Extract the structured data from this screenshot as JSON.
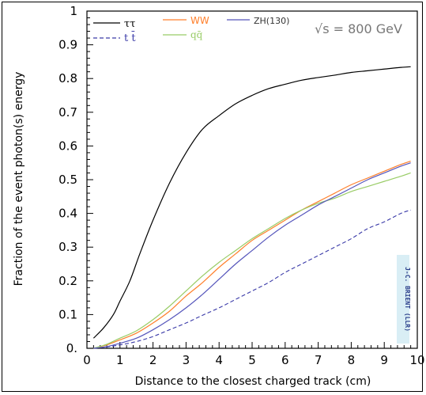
{
  "chart_data": {
    "type": "line",
    "title": "",
    "xlabel": "Distance to the closest charged track (cm)",
    "ylabel": "Fraction of the event photon(s) energy",
    "xlim": [
      0,
      10
    ],
    "ylim": [
      0,
      1
    ],
    "xticks": [
      "0",
      "1",
      "2",
      "3",
      "4",
      "5",
      "6",
      "7",
      "8",
      "9",
      "10"
    ],
    "yticks": [
      "0.",
      "0.1",
      "0.2",
      "0.3",
      "0.4",
      "0.5",
      "0.6",
      "0.7",
      "0.8",
      "0.9",
      "1"
    ],
    "annotation": "√s = 800 GeV",
    "author_stamp": "J-C. BRIENT (LLR)",
    "legend_position": "top",
    "series": [
      {
        "name": "ττ",
        "color": "#000000",
        "dash": "solid",
        "points": [
          [
            0.2,
            0.03
          ],
          [
            0.5,
            0.06
          ],
          [
            0.8,
            0.1
          ],
          [
            1.0,
            0.14
          ],
          [
            1.3,
            0.2
          ],
          [
            1.6,
            0.28
          ],
          [
            2.0,
            0.38
          ],
          [
            2.5,
            0.49
          ],
          [
            3.0,
            0.58
          ],
          [
            3.5,
            0.65
          ],
          [
            4.0,
            0.69
          ],
          [
            4.5,
            0.725
          ],
          [
            5.0,
            0.75
          ],
          [
            5.5,
            0.77
          ],
          [
            6.0,
            0.783
          ],
          [
            6.5,
            0.795
          ],
          [
            7.0,
            0.803
          ],
          [
            7.5,
            0.81
          ],
          [
            8.0,
            0.818
          ],
          [
            8.5,
            0.823
          ],
          [
            9.0,
            0.828
          ],
          [
            9.5,
            0.833
          ],
          [
            9.8,
            0.835
          ]
        ]
      },
      {
        "name": "t t̄",
        "color": "#3a3aa8",
        "dash": "dashed",
        "points": [
          [
            0.2,
            0.0
          ],
          [
            0.6,
            0.004
          ],
          [
            1.0,
            0.01
          ],
          [
            1.5,
            0.02
          ],
          [
            2.0,
            0.035
          ],
          [
            2.5,
            0.055
          ],
          [
            3.0,
            0.075
          ],
          [
            3.5,
            0.098
          ],
          [
            4.0,
            0.12
          ],
          [
            4.5,
            0.145
          ],
          [
            5.0,
            0.17
          ],
          [
            5.5,
            0.195
          ],
          [
            6.0,
            0.225
          ],
          [
            6.5,
            0.25
          ],
          [
            7.0,
            0.275
          ],
          [
            7.5,
            0.3
          ],
          [
            8.0,
            0.325
          ],
          [
            8.5,
            0.355
          ],
          [
            9.0,
            0.375
          ],
          [
            9.5,
            0.4
          ],
          [
            9.8,
            0.41
          ]
        ]
      },
      {
        "name": "WW",
        "color": "#ff7f2a",
        "dash": "solid",
        "points": [
          [
            0.2,
            0.0
          ],
          [
            0.6,
            0.01
          ],
          [
            1.0,
            0.025
          ],
          [
            1.5,
            0.045
          ],
          [
            2.0,
            0.075
          ],
          [
            2.5,
            0.11
          ],
          [
            3.0,
            0.155
          ],
          [
            3.5,
            0.195
          ],
          [
            4.0,
            0.24
          ],
          [
            4.5,
            0.28
          ],
          [
            5.0,
            0.32
          ],
          [
            5.5,
            0.35
          ],
          [
            6.0,
            0.38
          ],
          [
            6.5,
            0.41
          ],
          [
            7.0,
            0.435
          ],
          [
            7.5,
            0.46
          ],
          [
            8.0,
            0.485
          ],
          [
            8.5,
            0.505
          ],
          [
            9.0,
            0.525
          ],
          [
            9.5,
            0.545
          ],
          [
            9.8,
            0.555
          ]
        ]
      },
      {
        "name": "qq̄",
        "color": "#99cc66",
        "dash": "solid",
        "points": [
          [
            0.2,
            0.0
          ],
          [
            0.6,
            0.012
          ],
          [
            1.0,
            0.03
          ],
          [
            1.5,
            0.052
          ],
          [
            2.0,
            0.085
          ],
          [
            2.5,
            0.125
          ],
          [
            3.0,
            0.17
          ],
          [
            3.5,
            0.215
          ],
          [
            4.0,
            0.255
          ],
          [
            4.5,
            0.29
          ],
          [
            5.0,
            0.325
          ],
          [
            5.5,
            0.355
          ],
          [
            6.0,
            0.385
          ],
          [
            6.5,
            0.41
          ],
          [
            7.0,
            0.43
          ],
          [
            7.5,
            0.445
          ],
          [
            8.0,
            0.465
          ],
          [
            8.5,
            0.48
          ],
          [
            9.0,
            0.495
          ],
          [
            9.5,
            0.51
          ],
          [
            9.8,
            0.52
          ]
        ]
      },
      {
        "name": "ZH(130)",
        "color": "#5555bb",
        "dash": "solid",
        "points": [
          [
            0.2,
            0.0
          ],
          [
            0.6,
            0.005
          ],
          [
            1.0,
            0.015
          ],
          [
            1.5,
            0.03
          ],
          [
            2.0,
            0.055
          ],
          [
            2.5,
            0.085
          ],
          [
            3.0,
            0.12
          ],
          [
            3.5,
            0.16
          ],
          [
            4.0,
            0.205
          ],
          [
            4.5,
            0.25
          ],
          [
            5.0,
            0.29
          ],
          [
            5.5,
            0.33
          ],
          [
            6.0,
            0.365
          ],
          [
            6.5,
            0.395
          ],
          [
            7.0,
            0.425
          ],
          [
            7.5,
            0.45
          ],
          [
            8.0,
            0.475
          ],
          [
            8.5,
            0.5
          ],
          [
            9.0,
            0.52
          ],
          [
            9.5,
            0.54
          ],
          [
            9.8,
            0.55
          ]
        ]
      }
    ]
  }
}
